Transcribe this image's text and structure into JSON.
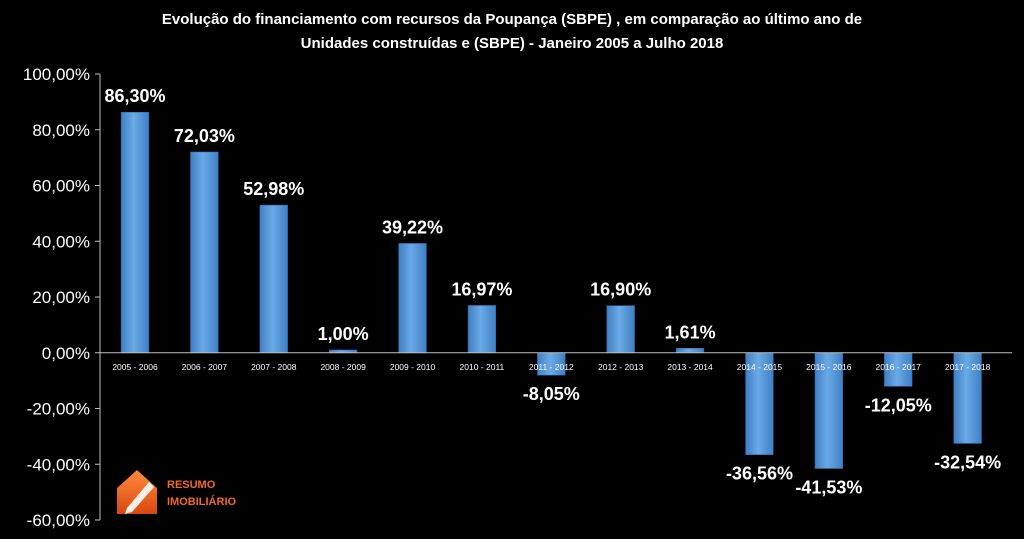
{
  "chart_data": {
    "type": "bar",
    "title_line1": "Evolução do financiamento com recursos da Poupança (SBPE) , em comparação ao último ano de",
    "title_line2": "Unidades construídas e (SBPE) - Janeiro 2005 a Julho 2018",
    "categories": [
      "2005 - 2006",
      "2006 - 2007",
      "2007 - 2008",
      "2008 - 2009",
      "2009 - 2010",
      "2010 - 2011",
      "2011 - 2012",
      "2012 - 2013",
      "2013 - 2014",
      "2014 - 2015",
      "2015 - 2016",
      "2016 - 2017",
      "2017 - 2018"
    ],
    "values": [
      86.3,
      72.03,
      52.98,
      1.0,
      39.22,
      16.97,
      -8.05,
      16.9,
      1.61,
      -36.56,
      -41.53,
      -12.05,
      -32.54
    ],
    "data_labels": [
      "86,30%",
      "72,03%",
      "52,98%",
      "1,00%",
      "39,22%",
      "16,97%",
      "-8,05%",
      "16,90%",
      "1,61%",
      "-36,56%",
      "-41,53%",
      "-12,05%",
      "-32,54%"
    ],
    "ylim": [
      -60,
      100
    ],
    "yticks": [
      100,
      80,
      60,
      40,
      20,
      0,
      -20,
      -40,
      -60
    ],
    "ytick_labels": [
      "100,00%",
      "80,00%",
      "60,00%",
      "40,00%",
      "20,00%",
      "0,00%",
      "-20,00%",
      "-40,00%",
      "-60,00%"
    ],
    "xlabel": "",
    "ylabel": "",
    "grid": false,
    "legend": "none",
    "bar_color": "#5b9bd5",
    "background": "#000000"
  },
  "logo": {
    "line1": "RESUMO",
    "line2": "IMOBILIÁRIO",
    "color": "#f26a21"
  }
}
